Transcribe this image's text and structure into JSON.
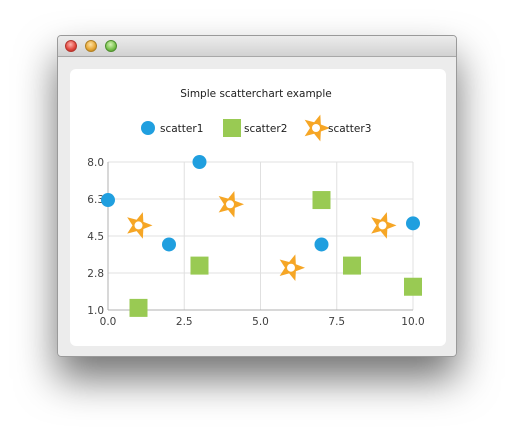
{
  "window": {
    "title": ""
  },
  "colors": {
    "scatter1": "#209fdf",
    "scatter2": "#99ca53",
    "scatter3": "#f6a625",
    "grid": "#e0e0e0",
    "axis": "#b0b0b0"
  },
  "chart_data": {
    "type": "scatter",
    "title": "Simple scatterchart example",
    "xlabel": "",
    "ylabel": "",
    "xlim": [
      0,
      10
    ],
    "ylim": [
      1,
      8
    ],
    "x_ticks": [
      "0.0",
      "2.5",
      "5.0",
      "7.5",
      "10.0"
    ],
    "y_ticks": [
      "1.0",
      "2.8",
      "4.5",
      "6.3",
      "8.0"
    ],
    "grid": true,
    "legend_position": "top",
    "series": [
      {
        "name": "scatter1",
        "marker": "circle",
        "points": [
          [
            0,
            6.2
          ],
          [
            2,
            4.1
          ],
          [
            3,
            8.0
          ],
          [
            7,
            4.1
          ],
          [
            10,
            5.1
          ]
        ]
      },
      {
        "name": "scatter2",
        "marker": "square",
        "points": [
          [
            1,
            1.1
          ],
          [
            3,
            3.1
          ],
          [
            7,
            6.2
          ],
          [
            8,
            3.1
          ],
          [
            10,
            2.1
          ]
        ]
      },
      {
        "name": "scatter3",
        "marker": "star",
        "points": [
          [
            1,
            5.0
          ],
          [
            4,
            6.0
          ],
          [
            6,
            3.0
          ],
          [
            9,
            5.0
          ]
        ]
      }
    ]
  }
}
